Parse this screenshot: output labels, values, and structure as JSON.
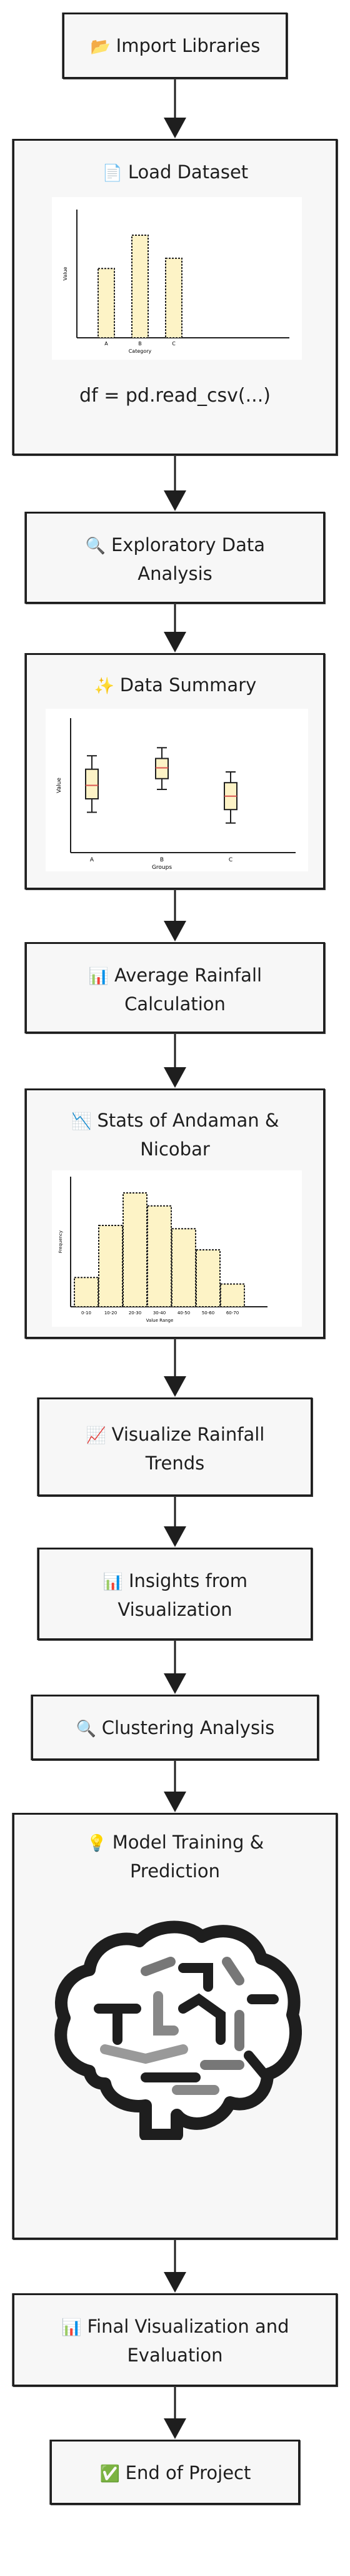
{
  "nodes": {
    "import_libraries": {
      "icon": "📂",
      "label": "Import Libraries"
    },
    "load_dataset": {
      "icon": "📄",
      "label": "Load Dataset",
      "code": "df = pd.read_csv(...)"
    },
    "eda": {
      "icon": "🔍",
      "line1": "Exploratory Data",
      "line2": "Analysis"
    },
    "data_summary": {
      "icon": "✨",
      "label": "Data Summary"
    },
    "avg_rainfall": {
      "icon": "📊",
      "line1": "Average Rainfall",
      "line2": "Calculation"
    },
    "stats_andaman": {
      "icon": "📉",
      "line1": "Stats of Andaman &",
      "line2": "Nicobar"
    },
    "visualize_trends": {
      "icon": "📈",
      "line1": "Visualize Rainfall",
      "line2": "Trends"
    },
    "insights": {
      "icon": "📊",
      "line1": "Insights from",
      "line2": "Visualization"
    },
    "clustering": {
      "icon": "🔍",
      "label": "Clustering Analysis"
    },
    "model_training": {
      "icon": "💡",
      "line1": "Model Training &",
      "line2": "Prediction"
    },
    "final_viz": {
      "icon": "📊",
      "line1": "Final Visualization and",
      "line2": "Evaluation"
    },
    "end": {
      "icon": "✅",
      "label": "End of Project"
    }
  },
  "icons": {
    "brain": "brain-icon"
  },
  "colors": {
    "bar_fill": "#fdf3c6",
    "stroke": "#1e1e1e",
    "median": "#d9534f",
    "node_bg": "#f7f7f7"
  },
  "chart_data": [
    {
      "type": "bar",
      "categories": [
        "A",
        "B",
        "C"
      ],
      "values": [
        54,
        80,
        62
      ],
      "xlabel": "Category",
      "ylabel": "Value",
      "ylim": [
        0,
        100
      ],
      "grid": false
    },
    {
      "type": "box",
      "categories": [
        "A",
        "B",
        "C"
      ],
      "series": [
        {
          "name": "A",
          "min": 30,
          "q1": 40,
          "median": 50,
          "q3": 62,
          "max": 72
        },
        {
          "name": "B",
          "min": 47,
          "q1": 55,
          "median": 63,
          "q3": 70,
          "max": 78
        },
        {
          "name": "C",
          "min": 22,
          "q1": 32,
          "median": 42,
          "q3": 52,
          "max": 60
        }
      ],
      "xlabel": "Groups",
      "ylabel": "Value",
      "ylim": [
        0,
        100
      ],
      "grid": false
    },
    {
      "type": "bar",
      "categories": [
        "0-10",
        "10-20",
        "20-30",
        "30-40",
        "40-50",
        "50-60",
        "60-70"
      ],
      "values": [
        18,
        50,
        70,
        62,
        48,
        35,
        14
      ],
      "xlabel": "Value Range",
      "ylabel": "Frequency",
      "ylim": [
        0,
        80
      ],
      "grid": false
    }
  ]
}
